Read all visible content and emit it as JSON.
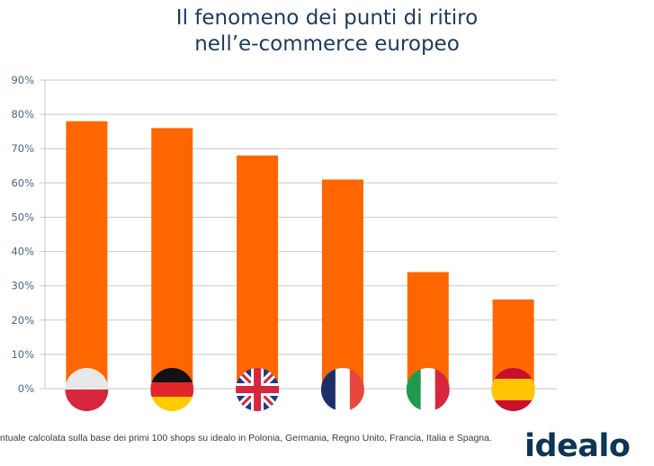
{
  "title": {
    "line1": "Il fenomeno dei punti di ritiro",
    "line2": "nell’e-commerce europeo"
  },
  "footnote": "ntuale calcolata sulla base dei primi 100 shops su idealo in Polonia, Germania, Regno Unito, Francia, Italia e Spagna.",
  "logo": "idealo",
  "colors": {
    "bar": "#ff6600",
    "title": "#1e3a5c",
    "grid": "#d0d0d0",
    "logo": "#0e3556"
  },
  "chart_data": {
    "type": "bar",
    "title": "Il fenomeno dei punti di ritiro nell’e-commerce europeo",
    "xlabel": "",
    "ylabel": "",
    "categories": [
      "Polonia",
      "Germania",
      "Regno Unito",
      "Francia",
      "Italia",
      "Spagna"
    ],
    "category_icons": [
      "flag-poland-icon",
      "flag-germany-icon",
      "flag-uk-icon",
      "flag-france-icon",
      "flag-italy-icon",
      "flag-spain-icon"
    ],
    "values": [
      78,
      76,
      68,
      61,
      34,
      26
    ],
    "unit": "%",
    "ylim": [
      0,
      90
    ],
    "yticks": [
      "0%",
      "10%",
      "20%",
      "30%",
      "40%",
      "50%",
      "60%",
      "70%",
      "80%",
      "90%"
    ],
    "grid": true,
    "legend": "none"
  }
}
